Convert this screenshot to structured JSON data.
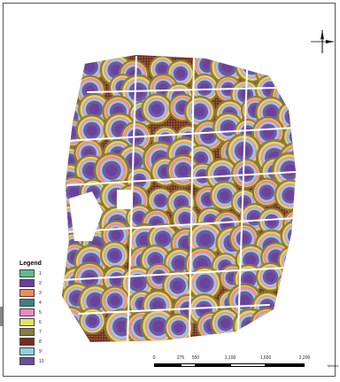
{
  "legend": {
    "title": "Legend",
    "classes": [
      {
        "label": "1",
        "color": "#5bbf8a"
      },
      {
        "label": "2",
        "color": "#6a3f9e"
      },
      {
        "label": "3",
        "color": "#f08a5b"
      },
      {
        "label": "4",
        "color": "#3e7f86"
      },
      {
        "label": "5",
        "color": "#e98ac0"
      },
      {
        "label": "6",
        "color": "#e7e25a"
      },
      {
        "label": "7",
        "color": "#8a7b3e"
      },
      {
        "label": "8",
        "color": "#7a2a22"
      },
      {
        "label": "9",
        "color": "#8fd3dc"
      },
      {
        "label": "10",
        "color": "#6b4f9a"
      }
    ]
  },
  "scale": {
    "ticks": [
      "0",
      "275",
      "550",
      "1,100",
      "1,650",
      "2,200"
    ],
    "unit": "Meters"
  },
  "north_arrow": {
    "icon": "north-arrow-icon"
  }
}
